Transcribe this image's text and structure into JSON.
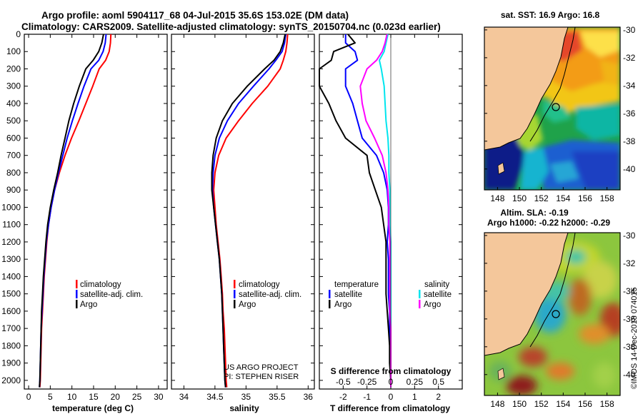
{
  "header": {
    "line1": "Argo profile: aoml 5904117_68 04-Jul-2015 35.6S 153.02E (DM data)",
    "line2": "Climatology: CARS2009. Satellite-adjusted climatology: synTS_20150704.nc (0.023d earlier)"
  },
  "colors": {
    "climatology": "#ff0000",
    "satellite": "#0000ff",
    "argo": "#000000",
    "sat_salinity": "#00e5ee",
    "argo_salinity": "#ff00ff",
    "land": "#f4c79b"
  },
  "depth_axis": {
    "min": 0,
    "max": 2050,
    "step": 100,
    "tick_labels": [
      "0",
      "100",
      "200",
      "300",
      "400",
      "500",
      "600",
      "700",
      "800",
      "900",
      "1000",
      "1100",
      "1200",
      "1300",
      "1400",
      "1500",
      "1600",
      "1700",
      "1800",
      "1900",
      "2000"
    ]
  },
  "chart_data": [
    {
      "type": "line",
      "title": "",
      "xlabel": "temperature (deg C)",
      "ylabel": "depth",
      "xlim": [
        -1,
        32
      ],
      "ylim": [
        2050,
        0
      ],
      "x_ticks": [
        0,
        5,
        10,
        15,
        20,
        25,
        30
      ],
      "x_tick_labels": [
        "0",
        "5",
        "10",
        "15",
        "20",
        "25",
        "30"
      ],
      "depth": [
        0,
        50,
        100,
        150,
        200,
        300,
        400,
        500,
        600,
        700,
        800,
        900,
        1000,
        1100,
        1200,
        1300,
        1400,
        1500,
        1600,
        1700,
        1800,
        1900,
        2000,
        2040
      ],
      "series": [
        {
          "name": "climatology",
          "color": "#ff0000",
          "values": [
            19.0,
            18.9,
            18.6,
            17.8,
            16.3,
            14.8,
            13.2,
            11.6,
            9.9,
            8.4,
            7.1,
            6.0,
            5.2,
            4.6,
            4.2,
            3.9,
            3.6,
            3.4,
            3.2,
            3.0,
            2.9,
            2.8,
            2.7,
            2.6
          ]
        },
        {
          "name": "satellite-adj. clim.",
          "color": "#0000ff",
          "values": [
            17.9,
            17.7,
            17.2,
            16.2,
            14.4,
            12.8,
            11.4,
            10.1,
            8.9,
            7.9,
            6.9,
            6.0,
            5.2,
            4.6,
            4.1,
            3.8,
            3.5,
            3.3,
            3.1,
            2.9,
            2.8,
            2.7,
            2.6,
            2.5
          ]
        },
        {
          "name": "Argo",
          "color": "#000000",
          "values": [
            17.3,
            16.9,
            16.2,
            14.9,
            13.2,
            11.7,
            10.4,
            9.3,
            8.4,
            7.5,
            6.7,
            5.8,
            5.0,
            4.4,
            4.0,
            3.7,
            3.4,
            3.2,
            3.0,
            2.9,
            2.8,
            2.7,
            2.6,
            2.5
          ]
        }
      ],
      "legend": {
        "placement": "lower-right",
        "entries": [
          "climatology",
          "satellite-adj. clim.",
          "Argo"
        ]
      }
    },
    {
      "type": "line",
      "xlabel": "salinity",
      "ylabel": "depth",
      "xlim": [
        33.8,
        36.1
      ],
      "ylim": [
        2050,
        0
      ],
      "x_ticks": [
        34,
        34.5,
        35,
        35.5,
        36
      ],
      "x_tick_labels": [
        "34",
        "34.5",
        "35",
        "35.5",
        "36"
      ],
      "depth": [
        0,
        50,
        100,
        150,
        200,
        300,
        400,
        500,
        600,
        700,
        800,
        900,
        1000,
        1100,
        1200,
        1300,
        1400,
        1500,
        1600,
        1700,
        1800,
        1900,
        2000,
        2040
      ],
      "series": [
        {
          "name": "climatology",
          "color": "#ff0000",
          "values": [
            35.67,
            35.66,
            35.64,
            35.6,
            35.55,
            35.35,
            35.1,
            34.88,
            34.68,
            34.56,
            34.5,
            34.48,
            34.5,
            34.52,
            34.55,
            34.58,
            34.6,
            34.62,
            34.63,
            34.65,
            34.66,
            34.67,
            34.68,
            34.69
          ]
        },
        {
          "name": "satellite-adj. clim.",
          "color": "#0000ff",
          "values": [
            35.64,
            35.62,
            35.58,
            35.48,
            35.37,
            35.12,
            34.88,
            34.7,
            34.57,
            34.5,
            34.47,
            34.46,
            34.48,
            34.51,
            34.54,
            34.57,
            34.59,
            34.61,
            34.62,
            34.63,
            34.64,
            34.65,
            34.66,
            34.67
          ]
        },
        {
          "name": "Argo",
          "color": "#000000",
          "values": [
            35.63,
            35.6,
            35.55,
            35.45,
            35.3,
            35.02,
            34.78,
            34.62,
            34.52,
            34.47,
            34.45,
            34.45,
            34.48,
            34.51,
            34.54,
            34.57,
            34.59,
            34.61,
            34.62,
            34.63,
            34.64,
            34.65,
            34.66,
            34.67
          ]
        }
      ],
      "legend": {
        "placement": "lower-right",
        "entries": [
          "climatology",
          "satellite-adj. clim.",
          "Argo"
        ]
      },
      "annotation": [
        "US ARGO PROJECT",
        "PI: STEPHEN RISER"
      ]
    },
    {
      "type": "line",
      "xlabel": "T difference from climatology",
      "ylabel": "depth",
      "xlim": [
        -3,
        3
      ],
      "ylim": [
        2050,
        0
      ],
      "x_ticks": [
        -2,
        -1,
        0,
        1,
        2
      ],
      "x_tick_labels": [
        "-2",
        "-1",
        "0",
        "1",
        "2"
      ],
      "secondary_axis": {
        "label": "S difference from climatology",
        "range": [
          -0.75,
          0.75
        ],
        "ticks": [
          -0.5,
          -0.25,
          0,
          0.25,
          0.5
        ],
        "tick_labels": [
          "-0.5",
          "-0.25",
          "0",
          "0.25",
          "0.5"
        ]
      },
      "depth": [
        0,
        50,
        100,
        150,
        200,
        300,
        400,
        500,
        600,
        700,
        800,
        900,
        1000,
        1100,
        1200,
        1300,
        1400,
        1500,
        1600,
        1700,
        1800,
        1900,
        2000,
        2040
      ],
      "series": [
        {
          "name": "temperature satellite",
          "color": "#0000ff",
          "units": "deg C",
          "values": [
            -1.9,
            -1.9,
            -1.5,
            -1.4,
            -1.9,
            -1.9,
            -1.6,
            -1.4,
            -1.2,
            -0.6,
            -0.3,
            -0.15,
            -0.1,
            -0.1,
            -0.15,
            -0.1,
            -0.1,
            -0.1,
            -0.05,
            -0.05,
            -0.03,
            -0.02,
            0,
            0
          ]
        },
        {
          "name": "temperature Argo",
          "color": "#000000",
          "units": "deg C",
          "values": [
            -1.8,
            -1.5,
            -2.4,
            -2.5,
            -3.0,
            -3.0,
            -2.6,
            -2.3,
            -1.9,
            -1.0,
            -0.9,
            -0.65,
            -0.4,
            -0.3,
            -0.2,
            -0.2,
            -0.2,
            -0.2,
            -0.15,
            -0.1,
            -0.05,
            -0.05,
            0,
            0
          ]
        },
        {
          "name": "salinity satellite",
          "color": "#00e5ee",
          "units": "psu",
          "values": [
            -0.03,
            -0.05,
            -0.07,
            -0.12,
            -0.1,
            -0.07,
            -0.06,
            -0.05,
            -0.03,
            -0.02,
            -0.02,
            -0.01,
            -0.01,
            -0.01,
            0,
            0,
            0,
            0,
            0,
            0,
            0,
            0,
            0,
            0
          ]
        },
        {
          "name": "salinity Argo",
          "color": "#ff00ff",
          "units": "psu",
          "values": [
            -0.04,
            -0.06,
            -0.09,
            -0.15,
            -0.25,
            -0.32,
            -0.3,
            -0.26,
            -0.17,
            -0.09,
            -0.05,
            -0.03,
            -0.02,
            -0.02,
            -0.01,
            -0.01,
            -0.01,
            -0.01,
            -0.01,
            0,
            0,
            0,
            0,
            0
          ]
        }
      ],
      "legend": {
        "placement": "lower-center",
        "temperature_title": "temperature",
        "salinity_title": "salinity",
        "entries": [
          "satellite",
          "Argo"
        ]
      }
    },
    {
      "type": "heatmap",
      "title": "sat. SST: 16.9 Argo: 16.8",
      "x_tick_labels": [
        "148",
        "150",
        "152",
        "154",
        "156",
        "158"
      ],
      "y_tick_labels": [
        "-30",
        "-32",
        "-34",
        "-36",
        "-38",
        "-40"
      ],
      "x_ticks": [
        148,
        150,
        152,
        154,
        156,
        158
      ],
      "y_ticks": [
        -30,
        -32,
        -34,
        -36,
        -38,
        -40
      ],
      "lon_range": [
        146.8,
        159.2
      ],
      "lat_range": [
        -41.5,
        -29.8
      ],
      "profile_location": {
        "lon": 153.02,
        "lat": -35.6
      }
    },
    {
      "type": "heatmap",
      "title": "Altim. SLA: -0.19",
      "subtitle": "Argo h1000: -0.22 h2000: -0.29",
      "x_tick_labels": [
        "148",
        "150",
        "152",
        "154",
        "156",
        "158"
      ],
      "y_tick_labels": [
        "-30",
        "-32",
        "-34",
        "-36",
        "-38",
        "-40"
      ],
      "x_ticks": [
        148,
        150,
        152,
        154,
        156,
        158
      ],
      "y_ticks": [
        -30,
        -32,
        -34,
        -36,
        -38,
        -40
      ],
      "lon_range": [
        146.8,
        159.2
      ],
      "lat_range": [
        -41.5,
        -29.8
      ],
      "profile_location": {
        "lon": 153.02,
        "lat": -35.6
      }
    }
  ],
  "labels": {
    "legend_climatology": "climatology",
    "legend_satellite": "satellite-adj. clim.",
    "legend_argo": "Argo",
    "legend_temperature": "temperature",
    "legend_salinity": "salinity",
    "legend_sat": "satellite",
    "legend_argo2": "Argo"
  },
  "stamp": "©IMOS 14-Dec-2018 074015"
}
